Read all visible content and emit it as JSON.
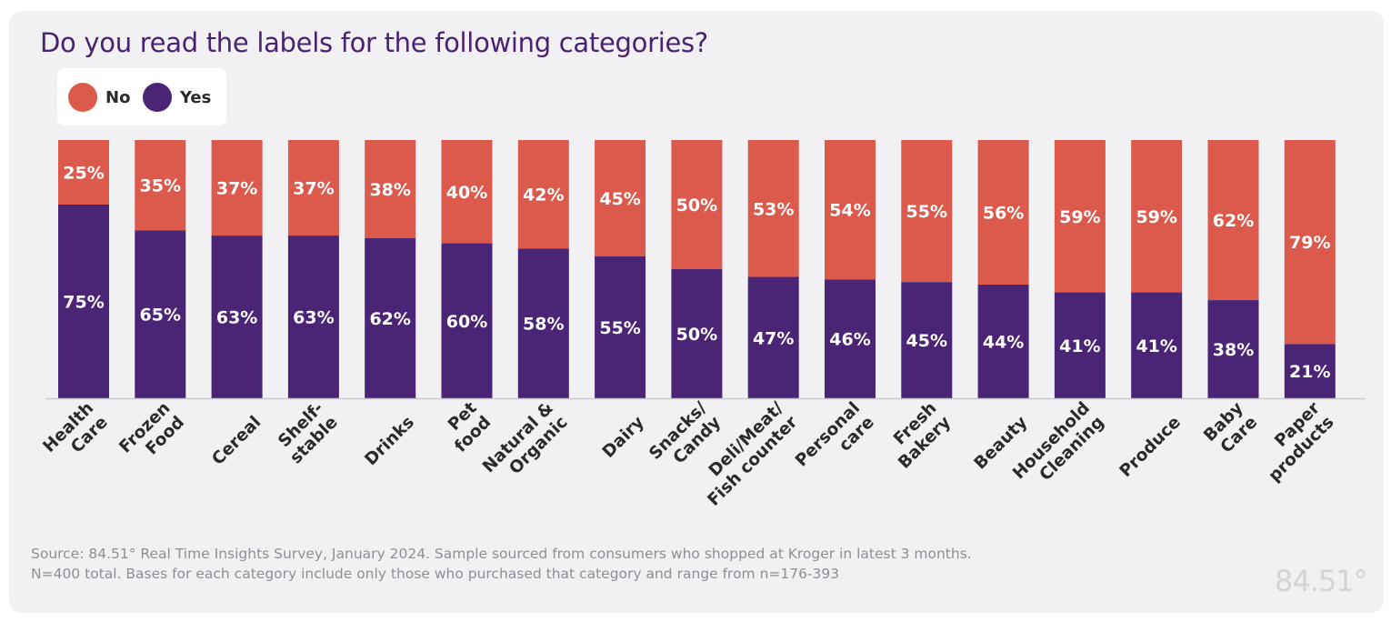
{
  "colors": {
    "no": "#db5a4c",
    "yes": "#4a2475",
    "title": "#4a2272",
    "axis_text": "#2a2a2a",
    "bar_label": "#ffffff",
    "axis_line": "#c9c9cf"
  },
  "footnote": {
    "line1": "Source:  84.51° Real Time Insights Survey, January 2024. Sample sourced from consumers who shopped at Kroger in latest 3 months.",
    "line2": "N=400 total. Bases for each category include only those who purchased that category and range from n=176-393"
  },
  "brand": "84.51°",
  "chart_data": {
    "type": "bar",
    "stacked": true,
    "title": "Do you read the labels for the following categories?",
    "xlabel": "",
    "ylabel": "",
    "ylim": [
      0,
      100
    ],
    "grid": false,
    "legend_position": "top-left",
    "categories": [
      [
        "Health",
        "Care"
      ],
      [
        "Frozen",
        "Food"
      ],
      [
        "Cereal"
      ],
      [
        "Shelf-",
        "stable"
      ],
      [
        "Drinks"
      ],
      [
        "Pet",
        "food"
      ],
      [
        "Natural &",
        "Organic"
      ],
      [
        "Dairy"
      ],
      [
        "Snacks/",
        "Candy"
      ],
      [
        "Deli/Meat/",
        "Fish counter"
      ],
      [
        "Personal",
        "care"
      ],
      [
        "Fresh",
        "Bakery"
      ],
      [
        "Beauty"
      ],
      [
        "Household",
        "Cleaning"
      ],
      [
        "Produce"
      ],
      [
        "Baby",
        "Care"
      ],
      [
        "Paper",
        "products"
      ]
    ],
    "series": [
      {
        "name": "Yes",
        "values": [
          75,
          65,
          63,
          63,
          62,
          60,
          58,
          55,
          50,
          47,
          46,
          45,
          44,
          41,
          41,
          38,
          21
        ],
        "labels": [
          "75%",
          "65%",
          "63%",
          "63%",
          "62%",
          "60%",
          "58%",
          "55%",
          "50%",
          "47%",
          "46%",
          "45%",
          "44%",
          "41%",
          "41%",
          "38%",
          "21%"
        ]
      },
      {
        "name": "No",
        "values": [
          25,
          35,
          37,
          37,
          38,
          40,
          42,
          45,
          50,
          53,
          54,
          55,
          56,
          59,
          59,
          62,
          79
        ],
        "labels": [
          "25%",
          "35%",
          "37%",
          "37%",
          "38%",
          "40%",
          "42%",
          "45%",
          "50%",
          "53%",
          "54%",
          "55%",
          "56%",
          "59%",
          "59%",
          "62%",
          "79%"
        ]
      }
    ],
    "legend": [
      "No",
      "Yes"
    ]
  }
}
